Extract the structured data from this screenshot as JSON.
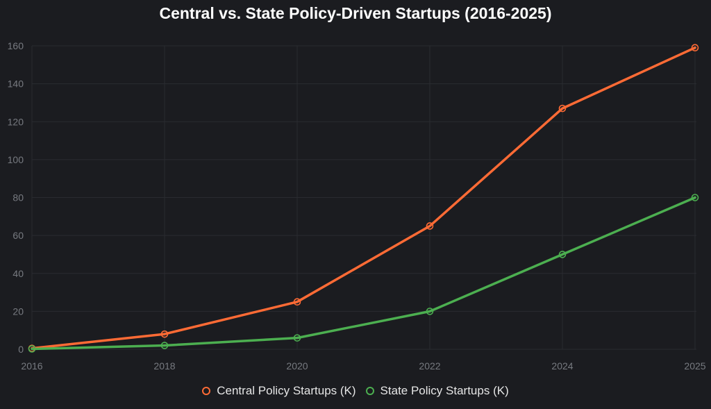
{
  "chart_data": {
    "type": "line",
    "title": "Central vs. State Policy-Driven Startups (2016-2025)",
    "xlabel": "",
    "ylabel": "",
    "categories": [
      "2016",
      "2018",
      "2020",
      "2022",
      "2024",
      "2025"
    ],
    "ylim": [
      0,
      160
    ],
    "yticks": [
      "0",
      "20",
      "40",
      "60",
      "80",
      "100",
      "120",
      "140",
      "160"
    ],
    "grid": true,
    "legend_position": "bottom",
    "series": [
      {
        "name": "Central Policy Startups (K)",
        "color": "#ff6b35",
        "values": [
          0.5,
          8,
          25,
          65,
          127,
          159
        ]
      },
      {
        "name": "State Policy Startups (K)",
        "color": "#4caf50",
        "values": [
          0.2,
          2,
          6,
          20,
          50,
          80
        ]
      }
    ]
  }
}
